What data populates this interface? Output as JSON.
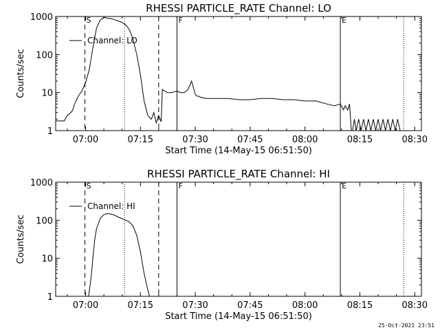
{
  "footer_timestamp": "25-Oct-2021 23:51",
  "chart_data": [
    {
      "type": "line",
      "title": "RHESSI PARTICLE_RATE Channel: LO",
      "xlabel": "Start Time (14-May-15 06:51:50)",
      "ylabel": "Counts/sec",
      "y_scale": "log",
      "ylim": [
        1,
        1000
      ],
      "xlim": [
        "06:51:50",
        "08:31:50"
      ],
      "x_tick_labels": [
        "07:00",
        "07:15",
        "07:30",
        "07:45",
        "08:00",
        "08:15",
        "08:30"
      ],
      "y_tick_labels": [
        "1",
        "10",
        "100",
        "1000"
      ],
      "legend": {
        "position": "top-left",
        "entries": [
          "Channel: LO"
        ]
      },
      "markers": [
        {
          "label": "S",
          "time": "06:59:50",
          "style": "dashed"
        },
        {
          "label": "",
          "time": "07:10:40",
          "style": "dotted"
        },
        {
          "label": "",
          "time": "07:20:00",
          "style": "dashed"
        },
        {
          "label": "F",
          "time": "07:25:00",
          "style": "solid"
        },
        {
          "label": "E",
          "time": "08:09:40",
          "style": "solid"
        },
        {
          "label": "",
          "time": "08:27:00",
          "style": "dotted"
        }
      ],
      "series": [
        {
          "name": "Channel: LO",
          "x": [
            "06:51:50",
            "06:54:10",
            "06:55:00",
            "06:56:00",
            "06:56:30",
            "06:57:00",
            "06:58:00",
            "06:59:00",
            "07:00:00",
            "07:01:00",
            "07:02:00",
            "07:03:00",
            "07:04:00",
            "07:05:00",
            "07:06:00",
            "07:07:00",
            "07:08:00",
            "07:09:00",
            "07:10:00",
            "07:11:00",
            "07:12:00",
            "07:13:00",
            "07:14:00",
            "07:15:00",
            "07:16:00",
            "07:17:00",
            "07:18:00",
            "07:18:40",
            "07:19:20",
            "07:20:00",
            "07:20:40",
            "07:21:00",
            "07:21:40",
            "07:22:30",
            "07:23:30",
            "07:25:00",
            "07:26:00",
            "07:27:00",
            "07:28:00",
            "07:29:00",
            "07:30:00",
            "07:30:30",
            "07:31:00",
            "07:31:30",
            "07:33:00",
            "07:36:00",
            "07:39:00",
            "07:42:00",
            "07:45:00",
            "07:48:00",
            "07:51:00",
            "07:54:00",
            "07:57:00",
            "08:00:00",
            "08:03:00",
            "08:06:00",
            "08:08:00",
            "08:09:40",
            "08:10:30",
            "08:11:00",
            "08:11:40",
            "08:12:10",
            "08:12:40",
            "08:13:00",
            "08:13:30",
            "08:14:00",
            "08:14:40",
            "08:15:20",
            "08:16:00",
            "08:16:40",
            "08:17:20",
            "08:18:00",
            "08:18:40",
            "08:19:20",
            "08:20:00",
            "08:20:40",
            "08:21:20",
            "08:22:00",
            "08:22:40",
            "08:23:20",
            "08:24:00",
            "08:24:40",
            "08:25:20",
            "08:26:00",
            "08:27:00"
          ],
          "y": [
            1.8,
            1.8,
            2.5,
            3,
            3.5,
            5,
            8,
            11,
            18,
            40,
            150,
            500,
            800,
            950,
            900,
            880,
            820,
            760,
            700,
            600,
            450,
            250,
            100,
            30,
            6,
            2.5,
            2,
            3,
            1.6,
            2.5,
            1.7,
            12,
            11,
            10,
            10,
            11,
            10,
            10,
            12,
            20,
            9,
            8,
            8,
            7.5,
            7,
            7,
            7,
            6.5,
            6.5,
            7,
            7,
            6.5,
            6.5,
            6,
            6,
            5,
            4.5,
            5,
            3.5,
            4.5,
            3.5,
            5,
            1,
            1,
            2,
            1,
            2,
            1,
            2,
            1,
            2,
            1,
            2,
            1,
            2,
            1,
            2,
            1,
            2,
            1,
            2,
            1,
            2,
            1,
            1
          ]
        }
      ]
    },
    {
      "type": "line",
      "title": "RHESSI PARTICLE_RATE Channel: HI",
      "xlabel": "Start Time (14-May-15 06:51:50)",
      "ylabel": "Counts/sec",
      "y_scale": "log",
      "ylim": [
        1,
        1000
      ],
      "xlim": [
        "06:51:50",
        "08:31:50"
      ],
      "x_tick_labels": [
        "07:00",
        "07:15",
        "07:30",
        "07:45",
        "08:00",
        "08:15",
        "08:30"
      ],
      "y_tick_labels": [
        "1",
        "10",
        "100",
        "1000"
      ],
      "legend": {
        "position": "top-left",
        "entries": [
          "Channel: HI"
        ]
      },
      "markers": [
        {
          "label": "S",
          "time": "06:59:50",
          "style": "dashed"
        },
        {
          "label": "",
          "time": "07:10:40",
          "style": "dotted"
        },
        {
          "label": "",
          "time": "07:20:00",
          "style": "dashed"
        },
        {
          "label": "F",
          "time": "07:25:00",
          "style": "solid"
        },
        {
          "label": "E",
          "time": "08:09:40",
          "style": "solid"
        },
        {
          "label": "",
          "time": "08:27:00",
          "style": "dotted"
        }
      ],
      "series": [
        {
          "name": "Channel: HI",
          "x": [
            "07:00:50",
            "07:01:30",
            "07:02:00",
            "07:02:30",
            "07:03:00",
            "07:04:00",
            "07:05:00",
            "07:06:00",
            "07:07:00",
            "07:08:00",
            "07:09:00",
            "07:10:00",
            "07:11:00",
            "07:12:00",
            "07:13:00",
            "07:14:00",
            "07:15:00",
            "07:16:00",
            "07:17:00",
            "07:17:30"
          ],
          "y": [
            1,
            3,
            10,
            30,
            60,
            110,
            140,
            150,
            145,
            135,
            120,
            110,
            100,
            90,
            70,
            40,
            15,
            4,
            1.5,
            1
          ]
        }
      ]
    }
  ]
}
